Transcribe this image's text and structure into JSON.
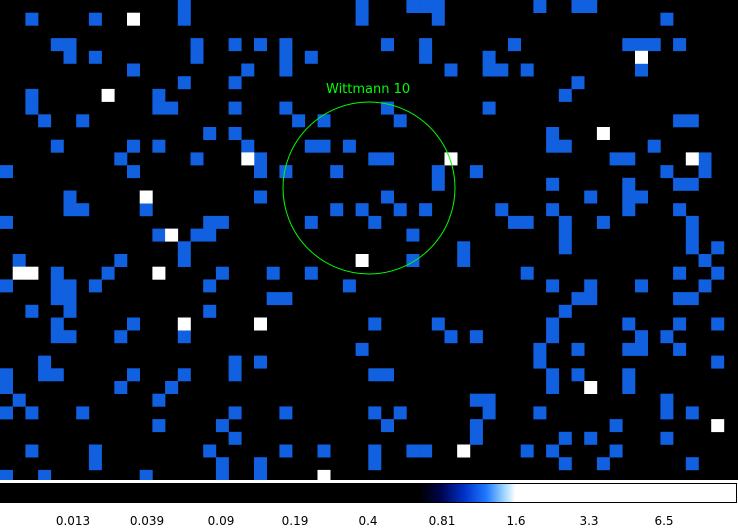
{
  "region": {
    "label": "Wittmann 10",
    "color": "#00ff00"
  },
  "colorbar": {
    "ticks": [
      "0.013",
      "0.039",
      "0.09",
      "0.19",
      "0.4",
      "0.81",
      "1.6",
      "3.3",
      "6.5"
    ]
  },
  "colors": {
    "background": "#000000",
    "low": "#1060e0",
    "high": "#ffffff"
  }
}
